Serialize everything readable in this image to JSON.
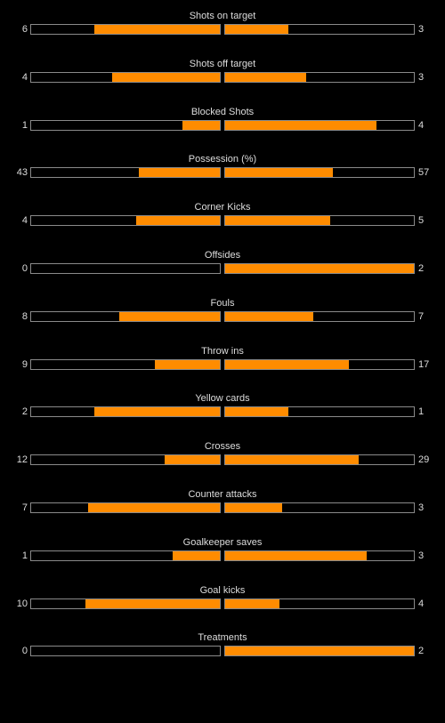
{
  "colors": {
    "background": "#000000",
    "bar_fill": "#ff8c00",
    "bar_border": "#8a8a8a",
    "text": "#dddddd"
  },
  "stats": [
    {
      "label": "Shots on target",
      "home": "6",
      "away": "3",
      "home_ratio": 0.667,
      "away_ratio": 0.333
    },
    {
      "label": "Shots off target",
      "home": "4",
      "away": "3",
      "home_ratio": 0.571,
      "away_ratio": 0.429
    },
    {
      "label": "Blocked Shots",
      "home": "1",
      "away": "4",
      "home_ratio": 0.2,
      "away_ratio": 0.8
    },
    {
      "label": "Possession (%)",
      "home": "43",
      "away": "57",
      "home_ratio": 0.43,
      "away_ratio": 0.57
    },
    {
      "label": "Corner Kicks",
      "home": "4",
      "away": "5",
      "home_ratio": 0.444,
      "away_ratio": 0.556
    },
    {
      "label": "Offsides",
      "home": "0",
      "away": "2",
      "home_ratio": 0.0,
      "away_ratio": 1.0
    },
    {
      "label": "Fouls",
      "home": "8",
      "away": "7",
      "home_ratio": 0.533,
      "away_ratio": 0.467
    },
    {
      "label": "Throw ins",
      "home": "9",
      "away": "17",
      "home_ratio": 0.346,
      "away_ratio": 0.654
    },
    {
      "label": "Yellow cards",
      "home": "2",
      "away": "1",
      "home_ratio": 0.667,
      "away_ratio": 0.333
    },
    {
      "label": "Crosses",
      "home": "12",
      "away": "29",
      "home_ratio": 0.293,
      "away_ratio": 0.707
    },
    {
      "label": "Counter attacks",
      "home": "7",
      "away": "3",
      "home_ratio": 0.7,
      "away_ratio": 0.3
    },
    {
      "label": "Goalkeeper saves",
      "home": "1",
      "away": "3",
      "home_ratio": 0.25,
      "away_ratio": 0.75
    },
    {
      "label": "Goal kicks",
      "home": "10",
      "away": "4",
      "home_ratio": 0.714,
      "away_ratio": 0.286
    },
    {
      "label": "Treatments",
      "home": "0",
      "away": "2",
      "home_ratio": 0.0,
      "away_ratio": 1.0
    }
  ]
}
